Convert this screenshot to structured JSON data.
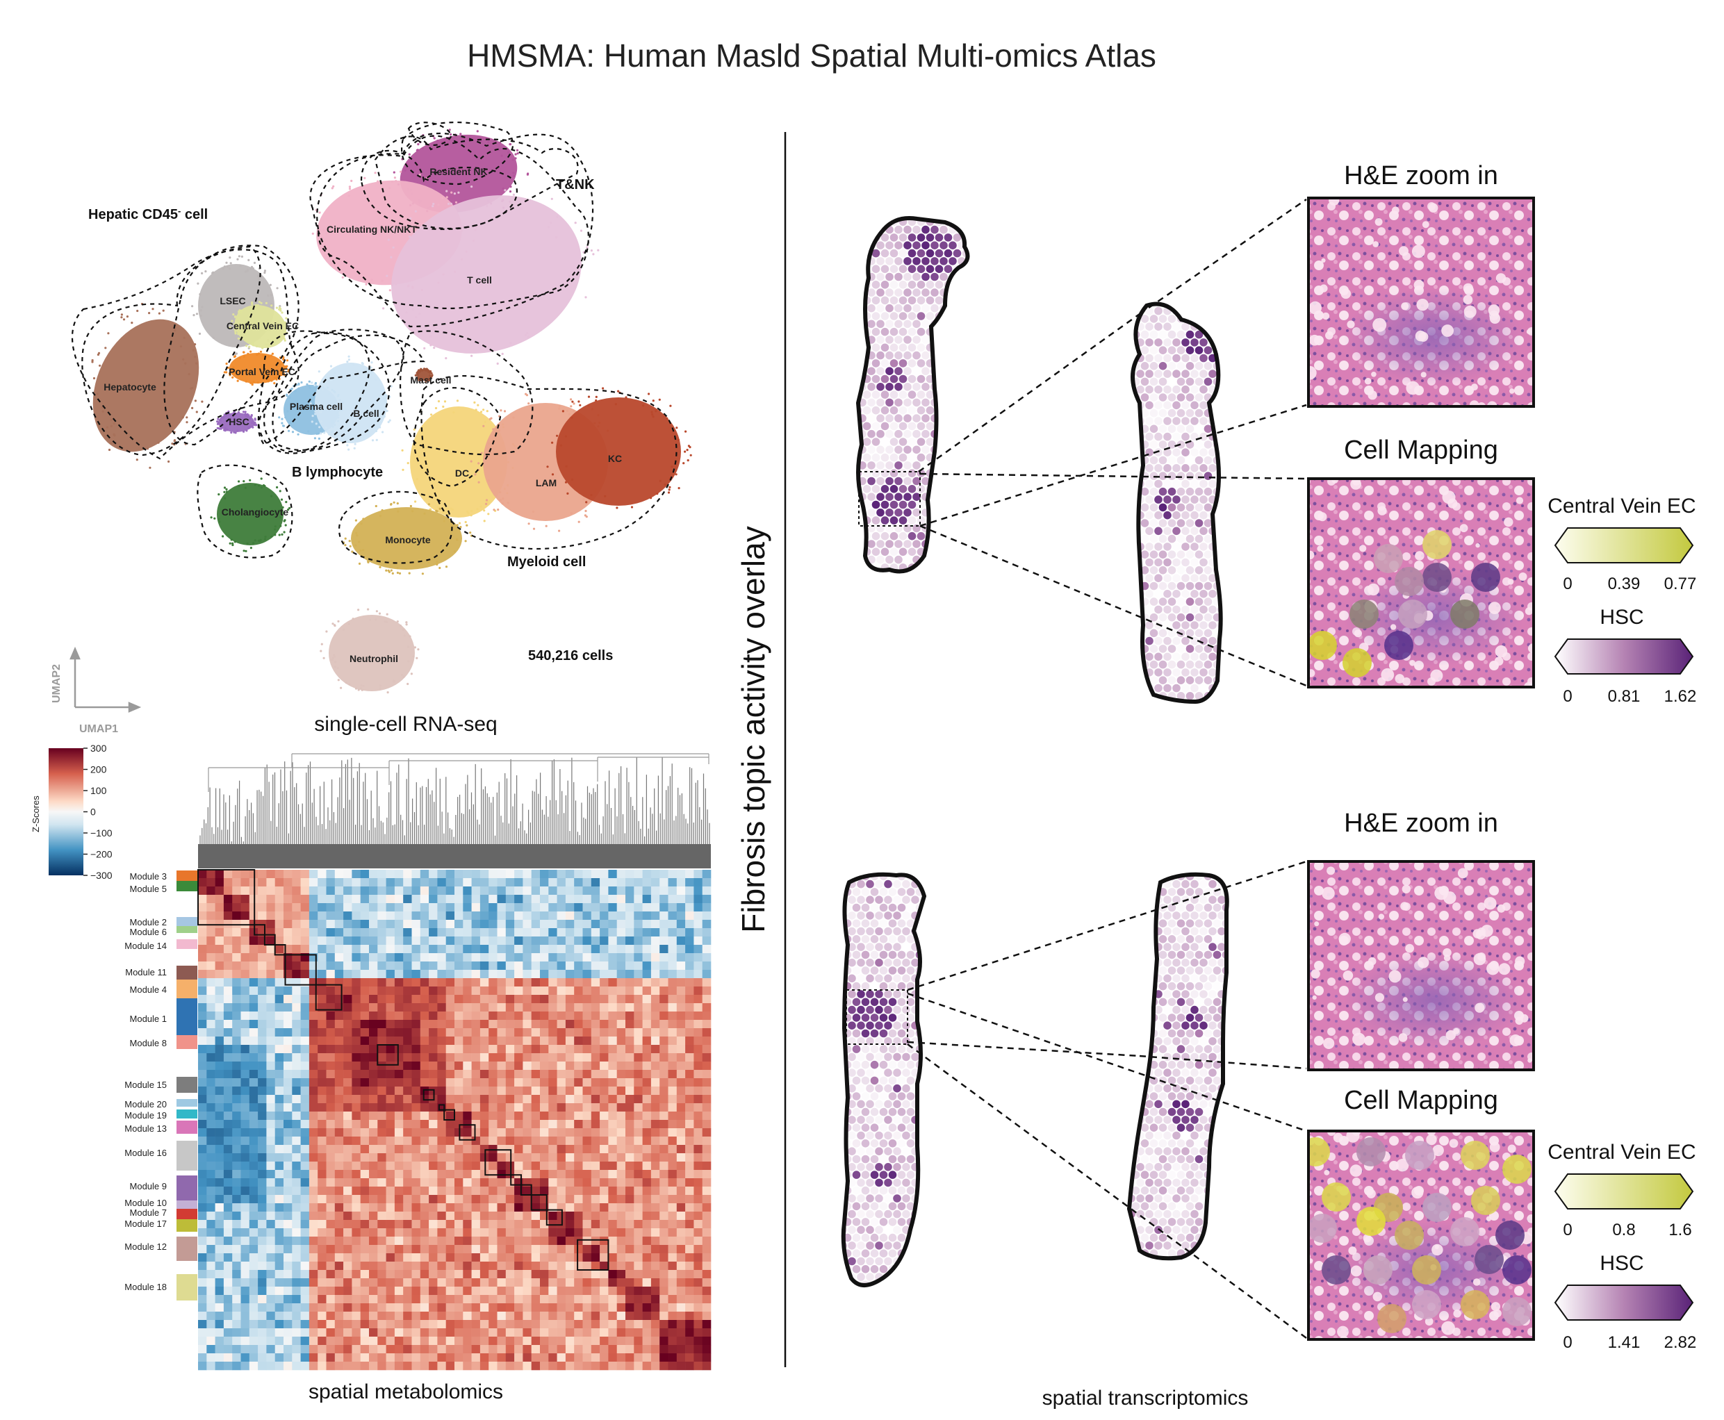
{
  "title": "HMSMA: Human Masld Spatial Multi-omics Atlas",
  "umap": {
    "group_labels": {
      "hepatic": "Hepatic CD45",
      "hepatic_sup": "-",
      "hepatic_tail": " cell",
      "tnk": "T&NK",
      "b_lymph": "B lymphocyte",
      "myeloid": "Myeloid cell",
      "count": "540,216 cells"
    },
    "clusters": [
      {
        "label": "Resident NK",
        "color": "#b3559b"
      },
      {
        "label": "Circulating NK/NKT",
        "color": "#f0b1c6"
      },
      {
        "label": "T cell",
        "color": "#e6c1da"
      },
      {
        "label": "LSEC",
        "color": "#bdb8b8"
      },
      {
        "label": "Central Vein EC",
        "color": "#dfe39b"
      },
      {
        "label": "Portal Vein EC",
        "color": "#f08a2a"
      },
      {
        "label": "Hepatocyte",
        "color": "#a8715a"
      },
      {
        "label": "HSC",
        "color": "#9a6bbf"
      },
      {
        "label": "Plasma cell",
        "color": "#8ec0e0"
      },
      {
        "label": "B cell",
        "color": "#cfe4f3"
      },
      {
        "label": "Mast cell",
        "color": "#a0553a"
      },
      {
        "label": "Cholangiocyte",
        "color": "#3e7c3a"
      },
      {
        "label": "DC",
        "color": "#f4d57a"
      },
      {
        "label": "LAM",
        "color": "#eaa58d"
      },
      {
        "label": "KC",
        "color": "#b9482c"
      },
      {
        "label": "Monocyte",
        "color": "#d3b155"
      },
      {
        "label": "Neutrophil",
        "color": "#ddc3bd"
      }
    ],
    "axis_x": "UMAP1",
    "axis_y": "UMAP2",
    "caption": "single-cell RNA-seq"
  },
  "metabolomics": {
    "colorbar_label": "Z-Scores",
    "colorbar_ticks": [
      "300",
      "200",
      "100",
      "0",
      "−100",
      "−200",
      "−300"
    ],
    "modules": [
      {
        "label": "Module 3",
        "color": "#e8762b"
      },
      {
        "label": "Module 5",
        "color": "#3b8a3a"
      },
      {
        "label": "Module 2",
        "color": "#a6c7e3"
      },
      {
        "label": "Module 6",
        "color": "#9fd08a"
      },
      {
        "label": "Module 14",
        "color": "#f2b9cf"
      },
      {
        "label": "Module 11",
        "color": "#8d5a52"
      },
      {
        "label": "Module 4",
        "color": "#f5b06a"
      },
      {
        "label": "Module 1",
        "color": "#2f73b3"
      },
      {
        "label": "Module 8",
        "color": "#f0938a"
      },
      {
        "label": "Module 15",
        "color": "#7d7d7d"
      },
      {
        "label": "Module 20",
        "color": "#9ec9e2"
      },
      {
        "label": "Module 19",
        "color": "#32b8c8"
      },
      {
        "label": "Module 13",
        "color": "#d976b8"
      },
      {
        "label": "Module 16",
        "color": "#c7c7c7"
      },
      {
        "label": "Module 9",
        "color": "#9069ad"
      },
      {
        "label": "Module 10",
        "color": "#c3b0d5"
      },
      {
        "label": "Module 7",
        "color": "#d23b33"
      },
      {
        "label": "Module 17",
        "color": "#bdbc38"
      },
      {
        "label": "Module 12",
        "color": "#c39b95"
      },
      {
        "label": "Module 18",
        "color": "#dedb92"
      }
    ],
    "caption": "spatial metabolomics"
  },
  "spatial": {
    "vertical_label": "Fibrosis topic activity overlay",
    "caption": "spatial transcriptomics",
    "panels": [
      {
        "he_title": "H&E zoom in",
        "map_title": "Cell Mapping",
        "legend1_title": "Central Vein EC",
        "legend1_ticks": [
          "0",
          "0.39",
          "0.77"
        ],
        "legend2_title": "HSC",
        "legend2_ticks": [
          "0",
          "0.81",
          "1.62"
        ]
      },
      {
        "he_title": "H&E zoom in",
        "map_title": "Cell Mapping",
        "legend1_title": "Central Vein EC",
        "legend1_ticks": [
          "0",
          "0.8",
          "1.6"
        ],
        "legend2_title": "HSC",
        "legend2_ticks": [
          "0",
          "1.41",
          "2.82"
        ]
      }
    ]
  },
  "colors": {
    "cv_low": "#fbfbe6",
    "cv_high": "#c3c93f",
    "hsc_low": "#ffffff",
    "hsc_high": "#5a2378",
    "he_pink": "#dc7fb4",
    "heat_red": "#b2182b",
    "heat_blue": "#2166ac"
  }
}
